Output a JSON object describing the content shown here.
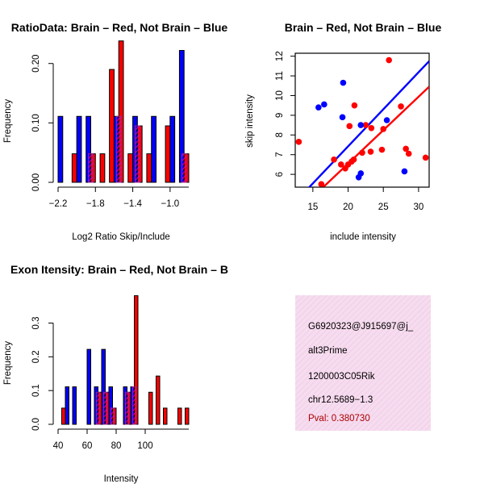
{
  "colors": {
    "red": "#ff0000",
    "blue": "#0000ff",
    "overlap": "#a02090",
    "info_bg": "#f4d2ea",
    "pval": "#aa0000"
  },
  "chart_data": [
    {
      "id": "ratio",
      "type": "bar",
      "title": "RatioData: Brain – Red, Not Brain – Blue",
      "xlabel": "Log2 Ratio Skip/Include",
      "ylabel": "Frequency",
      "xlim": [
        -2.2,
        -0.8
      ],
      "ylim": [
        0,
        0.22
      ],
      "xticks": [
        -2.2,
        -1.8,
        -1.4,
        -1.0
      ],
      "xtick_labels": [
        "−2.2",
        "−1.8",
        "−1.4",
        "−1.0"
      ],
      "yticks": [
        0.0,
        0.1,
        0.2
      ],
      "ytick_labels": [
        "0.00",
        "0.10",
        "0.20"
      ],
      "bin_edges": [
        -2.2,
        -2.1,
        -2.0,
        -1.9,
        -1.8,
        -1.7,
        -1.6,
        -1.5,
        -1.4,
        -1.3,
        -1.2,
        -1.1,
        -1.0,
        -0.9,
        -0.8
      ],
      "series": [
        {
          "name": "Not Brain",
          "color": "blue",
          "values": [
            0.111,
            0,
            0.111,
            0.111,
            0,
            0,
            0.111,
            0,
            0.111,
            0,
            0.111,
            0,
            0.111,
            0.222
          ]
        },
        {
          "name": "Brain",
          "color": "red",
          "values": [
            0,
            0.048,
            0,
            0.048,
            0.048,
            0.19,
            0.238,
            0.048,
            0.095,
            0.048,
            0,
            0.095,
            0,
            0.048
          ]
        }
      ]
    },
    {
      "id": "scatter",
      "type": "scatter",
      "title": "Brain – Red, Not Brain – Blue",
      "xlabel": "include intensity",
      "ylabel": "skip intensity",
      "xlim": [
        12.5,
        31.5
      ],
      "ylim": [
        5.35,
        12.15
      ],
      "xticks": [
        15,
        20,
        25,
        30
      ],
      "xtick_labels": [
        "15",
        "20",
        "25",
        "30"
      ],
      "yticks": [
        6,
        7,
        8,
        9,
        10,
        11,
        12
      ],
      "ytick_labels": [
        "6",
        "7",
        "8",
        "9",
        "10",
        "11",
        "12"
      ],
      "series": [
        {
          "name": "Brain",
          "color": "red",
          "points": [
            [
              13,
              7.65
            ],
            [
              16.2,
              5.5
            ],
            [
              18,
              6.75
            ],
            [
              19,
              6.5
            ],
            [
              19.6,
              6.3
            ],
            [
              20,
              6.5
            ],
            [
              20.2,
              8.45
            ],
            [
              20.5,
              6.65
            ],
            [
              20.8,
              6.75
            ],
            [
              20.9,
              9.5
            ],
            [
              22,
              7.1
            ],
            [
              22.5,
              8.5
            ],
            [
              23.2,
              7.15
            ],
            [
              23.3,
              8.35
            ],
            [
              24.8,
              7.25
            ],
            [
              25,
              8.3
            ],
            [
              25.8,
              11.8
            ],
            [
              27.5,
              9.45
            ],
            [
              28.2,
              7.3
            ],
            [
              28.6,
              7.05
            ],
            [
              31,
              6.85
            ]
          ]
        },
        {
          "name": "Not Brain",
          "color": "blue",
          "points": [
            [
              15.8,
              9.4
            ],
            [
              16.6,
              9.55
            ],
            [
              19.3,
              10.65
            ],
            [
              19.2,
              8.9
            ],
            [
              21.5,
              5.85
            ],
            [
              21.8,
              6.05
            ],
            [
              21.8,
              8.5
            ],
            [
              25.5,
              8.75
            ],
            [
              28,
              6.15
            ]
          ]
        }
      ],
      "fit_lines": [
        {
          "color": "blue",
          "from": [
            12.5,
            4.6
          ],
          "to": [
            31.5,
            11.75
          ]
        },
        {
          "color": "red",
          "from": [
            12.5,
            4.0
          ],
          "to": [
            31.5,
            10.45
          ]
        }
      ]
    },
    {
      "id": "intensity",
      "type": "bar",
      "title": "Exon Itensity: Brain – Red, Not Brain – B",
      "xlabel": "Intensity",
      "ylabel": "Frequency",
      "xlim": [
        40,
        130
      ],
      "ylim": [
        0,
        0.38
      ],
      "xticks": [
        40,
        60,
        80,
        100
      ],
      "xtick_labels": [
        "40",
        "60",
        "80",
        "100"
      ],
      "yticks": [
        0.0,
        0.1,
        0.2,
        0.3
      ],
      "ytick_labels": [
        "0.0",
        "0.1",
        "0.2",
        "0.3"
      ],
      "bin_edges": [
        40,
        45,
        50,
        55,
        60,
        65,
        70,
        75,
        80,
        85,
        90,
        95,
        100,
        105,
        110,
        115,
        120,
        125,
        130
      ],
      "series": [
        {
          "name": "Not Brain",
          "color": "blue",
          "values": [
            0,
            0.111,
            0.111,
            0,
            0.222,
            0.111,
            0.222,
            0.111,
            0,
            0.111,
            0.111,
            0,
            0,
            0,
            0,
            0,
            0,
            0
          ]
        },
        {
          "name": "Brain",
          "color": "red",
          "values": [
            0.048,
            0,
            0,
            0,
            0,
            0.095,
            0.095,
            0.048,
            0,
            0.095,
            0.381,
            0,
            0.095,
            0.143,
            0.048,
            0,
            0.048,
            0.048
          ]
        }
      ]
    }
  ],
  "info": {
    "id": "G6920323@J915697@j_",
    "type": "alt3Prime",
    "gene": "1200003C05Rik",
    "location": "chr12.5689−1.3",
    "pval": "Pval: 0.380730"
  }
}
